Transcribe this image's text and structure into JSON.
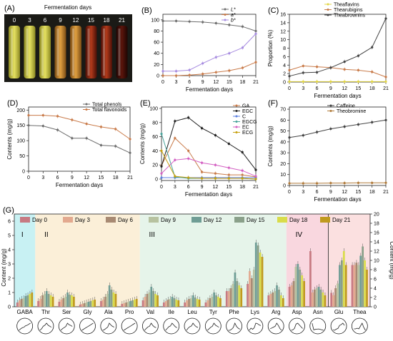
{
  "colors": {
    "orange": "#c97b4a",
    "grey": "#6e6e6e",
    "mauve": "#c4a0b0",
    "magenta": "#d35fc2",
    "purple": "#a78ce0",
    "yellow": "#e2d645",
    "black": "#222222",
    "teal": "#49a39b",
    "olive": "#9a8c10",
    "brown": "#b07a3a"
  },
  "panels": {
    "A": {
      "label": "(A)",
      "title": "Fermentation days",
      "days": [
        "0",
        "3",
        "6",
        "9",
        "12",
        "15",
        "18",
        "21"
      ]
    },
    "B": {
      "label": "(B)"
    },
    "C": {
      "label": "(C)"
    },
    "D": {
      "label": "(D)"
    },
    "E": {
      "label": "(E)"
    },
    "F": {
      "label": "(F)"
    },
    "G": {
      "label": "(G)"
    }
  },
  "chart_data": [
    {
      "panel": "B",
      "type": "line",
      "x": [
        0,
        3,
        6,
        9,
        12,
        15,
        18,
        21
      ],
      "xticks": [
        "0",
        "3",
        "6",
        "9",
        "12",
        "15",
        "18",
        "21"
      ],
      "yticks": [
        "0",
        "20",
        "40",
        "60",
        "80",
        "100"
      ],
      "xlabel": "Fermentation days",
      "ylabel": "",
      "xlim": [
        0,
        21
      ],
      "ylim": [
        0,
        110
      ],
      "legend": "top-right",
      "series": [
        {
          "name": "L*",
          "color": "#6e6e6e",
          "values": [
            98,
            98,
            97,
            96,
            94,
            91,
            88,
            80
          ]
        },
        {
          "name": "a*",
          "color": "#c97b4a",
          "values": [
            0,
            0,
            1,
            3,
            6,
            9,
            14,
            24
          ]
        },
        {
          "name": "b*",
          "color": "#a78ce0",
          "values": [
            8,
            8,
            10,
            22,
            33,
            40,
            50,
            75
          ]
        }
      ]
    },
    {
      "panel": "C",
      "type": "line",
      "x": [
        0,
        3,
        6,
        9,
        12,
        15,
        18,
        21
      ],
      "xticks": [
        "0",
        "3",
        "6",
        "9",
        "12",
        "15",
        "18",
        "21"
      ],
      "yticks": [
        "0",
        "2",
        "4",
        "6",
        "8",
        "10",
        "12",
        "14",
        "16"
      ],
      "xlabel": "Fermentation days",
      "ylabel": "Proportion (%)",
      "xlim": [
        0,
        21
      ],
      "ylim": [
        0,
        16
      ],
      "legend": "top-right",
      "series": [
        {
          "name": "Theaflavins",
          "color": "#e2d645",
          "values": [
            0.1,
            0.1,
            0.1,
            0.1,
            0.1,
            0.1,
            0.1,
            0.1
          ]
        },
        {
          "name": "Thearubigins",
          "color": "#c97b4a",
          "values": [
            2.8,
            3.8,
            3.6,
            3.4,
            3.0,
            2.8,
            2.4,
            1.2
          ]
        },
        {
          "name": "Theabrownins",
          "color": "#444444",
          "values": [
            1.4,
            2.2,
            2.3,
            3.4,
            4.8,
            6.2,
            8.2,
            15
          ]
        }
      ]
    },
    {
      "panel": "D",
      "type": "line",
      "x": [
        0,
        3,
        6,
        9,
        12,
        15,
        18,
        21
      ],
      "xticks": [
        "0",
        "3",
        "6",
        "9",
        "12",
        "15",
        "18",
        "21"
      ],
      "yticks": [
        "0",
        "50",
        "100",
        "150",
        "200"
      ],
      "xlabel": "Fermentation days",
      "ylabel": "Contents (mg/g)",
      "xlim": [
        0,
        21
      ],
      "ylim": [
        0,
        210
      ],
      "legend": "top-right",
      "series": [
        {
          "name": "Total phenols",
          "color": "#6e6e6e",
          "values": [
            150,
            148,
            135,
            108,
            108,
            85,
            82,
            60
          ]
        },
        {
          "name": "Total flavonoids",
          "color": "#c97b4a",
          "values": [
            183,
            183,
            180,
            168,
            155,
            145,
            138,
            105
          ]
        }
      ]
    },
    {
      "panel": "E",
      "type": "line",
      "x": [
        0,
        3,
        6,
        9,
        12,
        15,
        18,
        21
      ],
      "xticks": [
        "0",
        "3",
        "6",
        "9",
        "12",
        "15",
        "18",
        "21"
      ],
      "yticks": [
        "0",
        "20",
        "40",
        "60",
        "80",
        "100"
      ],
      "xlabel": "Fermentation days",
      "ylabel": "Contents (mg/g)",
      "xlim": [
        0,
        21
      ],
      "ylim": [
        -2,
        102
      ],
      "legend": "top-right",
      "series": [
        {
          "name": "GA",
          "color": "#c97b4a",
          "values": [
            19,
            58,
            40,
            10,
            8,
            6,
            6,
            3
          ]
        },
        {
          "name": "EGC",
          "color": "#222222",
          "values": [
            18,
            82,
            87,
            72,
            62,
            50,
            38,
            13
          ]
        },
        {
          "name": "C",
          "color": "#5b7fe0",
          "values": [
            2,
            2,
            2,
            2,
            2,
            2,
            2,
            2
          ]
        },
        {
          "name": "EGCG",
          "color": "#49a39b",
          "values": [
            64,
            3,
            1,
            1,
            1,
            1,
            1,
            0
          ]
        },
        {
          "name": "EC",
          "color": "#d35fc2",
          "values": [
            8,
            27,
            29,
            23,
            20,
            16,
            12,
            4
          ]
        },
        {
          "name": "ECG",
          "color": "#c7a10f",
          "values": [
            40,
            4,
            2,
            1,
            1,
            1,
            1,
            0
          ]
        }
      ]
    },
    {
      "panel": "F",
      "type": "line",
      "x": [
        0,
        3,
        6,
        9,
        12,
        15,
        18,
        21
      ],
      "xticks": [
        "0",
        "3",
        "6",
        "9",
        "12",
        "15",
        "18",
        "21"
      ],
      "yticks": [
        "0",
        "10",
        "20",
        "30",
        "40",
        "50",
        "60",
        "70"
      ],
      "xlabel": "Fermentation days",
      "ylabel": "Contents (mg/g)",
      "xlim": [
        0,
        21
      ],
      "ylim": [
        0,
        72
      ],
      "legend": "top-left",
      "series": [
        {
          "name": "Caffeine",
          "color": "#444444",
          "values": [
            44,
            46,
            49,
            52,
            54,
            56,
            58,
            60
          ]
        },
        {
          "name": "Theobromine",
          "color": "#b07a3a",
          "values": [
            2,
            2,
            2,
            2.2,
            2.2,
            2.4,
            2.4,
            2.5
          ]
        }
      ]
    },
    {
      "panel": "G",
      "type": "bar",
      "categories": [
        "GABA",
        "Thr",
        "Ser",
        "Gly",
        "Ala",
        "Pro",
        "Val",
        "Ile",
        "Leu",
        "Tyr",
        "Phe",
        "Lys",
        "Arg",
        "Asp",
        "Asn",
        "Glu",
        "Thea"
      ],
      "yticks": [
        "0",
        "1",
        "2",
        "3",
        "4",
        "5",
        "6"
      ],
      "y2ticks": [
        "0",
        "2",
        "4",
        "6",
        "8",
        "10",
        "12",
        "14",
        "16",
        "18",
        "20"
      ],
      "ylabel": "Content (mg/g)",
      "y2label": "Content (mg/g)",
      "ylim": [
        0,
        6.5
      ],
      "y2lim": [
        0,
        20
      ],
      "right_axis_categories": [
        "Glu",
        "Thea"
      ],
      "groups": [
        "I",
        "II",
        "III",
        "IV"
      ],
      "legend": "top",
      "series": [
        {
          "name": "Day 0",
          "color": "#c77a82",
          "values": [
            0.3,
            0.4,
            0.35,
            0.15,
            0.4,
            0.2,
            0.45,
            0.3,
            0.3,
            0.3,
            1.1,
            1.6,
            0.8,
            1.4,
            3.9,
            3.0,
            9.0
          ]
        },
        {
          "name": "Day 3",
          "color": "#e3a98f",
          "values": [
            0.45,
            0.55,
            0.5,
            0.2,
            0.5,
            0.25,
            0.7,
            0.4,
            0.45,
            0.45,
            1.1,
            2.5,
            0.9,
            1.5,
            1.0,
            2.5,
            9.0
          ]
        },
        {
          "name": "Day 6",
          "color": "#a88a73",
          "values": [
            0.55,
            0.8,
            0.6,
            0.25,
            0.7,
            0.3,
            0.9,
            0.5,
            0.55,
            0.6,
            1.3,
            2.0,
            1.0,
            1.8,
            1.2,
            4.0,
            9.5
          ]
        },
        {
          "name": "Day 9",
          "color": "#b7c2a0",
          "values": [
            0.6,
            0.9,
            0.7,
            0.3,
            0.9,
            0.35,
            1.0,
            0.55,
            0.6,
            0.7,
            1.6,
            2.6,
            1.1,
            2.8,
            1.3,
            5.0,
            9.0
          ]
        },
        {
          "name": "Day 12",
          "color": "#6f9d95",
          "values": [
            0.75,
            1.1,
            1.0,
            0.35,
            1.5,
            0.4,
            1.4,
            0.7,
            0.8,
            1.0,
            2.4,
            4.5,
            1.5,
            3.0,
            1.4,
            9.0,
            11.0
          ]
        },
        {
          "name": "Day 15",
          "color": "#8aa08a",
          "values": [
            0.8,
            0.9,
            0.85,
            0.4,
            1.2,
            0.45,
            1.1,
            0.6,
            0.65,
            0.8,
            1.8,
            4.3,
            1.2,
            2.6,
            1.2,
            10.0,
            13.0
          ]
        },
        {
          "name": "Day 18",
          "color": "#d9dc4a",
          "values": [
            0.9,
            0.8,
            0.8,
            0.45,
            1.0,
            0.5,
            0.9,
            0.5,
            0.55,
            0.7,
            1.5,
            3.8,
            0.8,
            2.2,
            1.0,
            12.0,
            10.0
          ]
        },
        {
          "name": "Day 21",
          "color": "#c09a1e",
          "values": [
            1.0,
            0.7,
            0.7,
            0.5,
            0.9,
            0.55,
            0.8,
            0.45,
            0.5,
            0.6,
            1.3,
            3.5,
            0.6,
            1.8,
            0.8,
            9.0,
            8.0
          ]
        }
      ]
    }
  ]
}
